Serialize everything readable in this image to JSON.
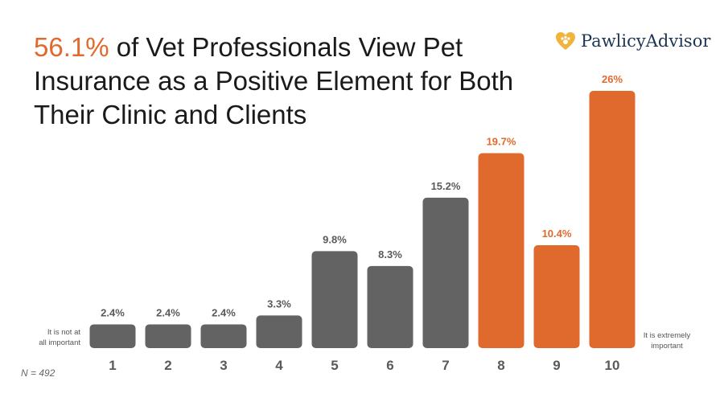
{
  "title": {
    "highlight": "56.1%",
    "text": " of Vet Professionals View Pet Insurance as a Positive Element for Both Their Clinic and Clients"
  },
  "brand": {
    "name": "PawlicyAdvisor",
    "icon": "heart-paw-icon"
  },
  "colors": {
    "accent": "#e06a2d",
    "neutral": "#636363",
    "brand_navy": "#1d3553",
    "brand_gold": "#f0b43c"
  },
  "chart_data": {
    "type": "bar",
    "categories": [
      "1",
      "2",
      "3",
      "4",
      "5",
      "6",
      "7",
      "8",
      "9",
      "10"
    ],
    "values": [
      2.4,
      2.4,
      2.4,
      3.3,
      9.8,
      8.3,
      15.2,
      19.7,
      10.4,
      26
    ],
    "value_labels": [
      "2.4%",
      "2.4%",
      "2.4%",
      "3.3%",
      "9.8%",
      "8.3%",
      "15.2%",
      "19.7%",
      "10.4%",
      "26%"
    ],
    "highlighted": [
      false,
      false,
      false,
      false,
      false,
      false,
      false,
      true,
      true,
      true
    ],
    "ylim": [
      0,
      26
    ],
    "grid": false,
    "left_note": [
      "It is not at",
      "all important"
    ],
    "right_note": [
      "It is extremely",
      "important"
    ],
    "sample_size": "N = 492"
  }
}
